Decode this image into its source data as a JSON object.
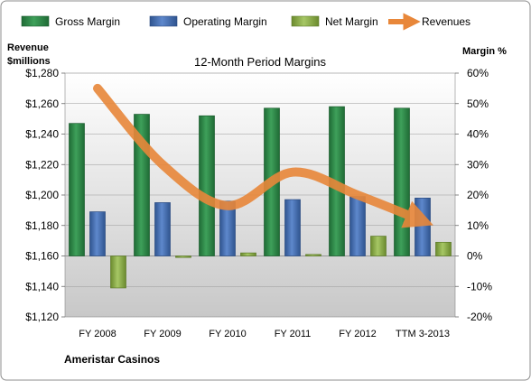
{
  "chart_data": {
    "type": "bar",
    "title": "12-Month Period Margins",
    "left_axis_label_line1": "Revenue",
    "left_axis_label_line2": "$millions",
    "right_axis_label": "Margin %",
    "footer_label": "Ameristar Casinos",
    "categories": [
      "FY 2008",
      "FY 2009",
      "FY 2010",
      "FY 2011",
      "FY 2012",
      "TTM 3-2013"
    ],
    "left_ylim": [
      1120,
      1280
    ],
    "left_ticks": [
      "$1,280",
      "$1,260",
      "$1,240",
      "$1,220",
      "$1,200",
      "$1,180",
      "$1,160",
      "$1,140",
      "$1,120"
    ],
    "right_ylim": [
      -20,
      60
    ],
    "right_ticks": [
      "60%",
      "50%",
      "40%",
      "30%",
      "20%",
      "10%",
      "0%",
      "-10%",
      "-20%"
    ],
    "grid": true,
    "legend_position": "top",
    "series": [
      {
        "name": "Gross Margin",
        "axis": "right",
        "type": "bar",
        "color": "#2e8b4a",
        "values": [
          43.5,
          46.5,
          46,
          48.5,
          49,
          48.5
        ]
      },
      {
        "name": "Operating Margin",
        "axis": "right",
        "type": "bar",
        "color": "#4a72b8",
        "values": [
          14.5,
          17.5,
          18,
          18.5,
          19.5,
          19
        ]
      },
      {
        "name": "Net Margin",
        "axis": "right",
        "type": "bar",
        "color": "#8fb04a",
        "values": [
          -10.5,
          -0.5,
          1,
          0.5,
          6.5,
          4.5
        ]
      },
      {
        "name": "Revenues",
        "axis": "left",
        "type": "line",
        "color": "#e8873a",
        "values": [
          1270,
          1220,
          1193,
          1215,
          1200,
          1183
        ]
      }
    ]
  }
}
